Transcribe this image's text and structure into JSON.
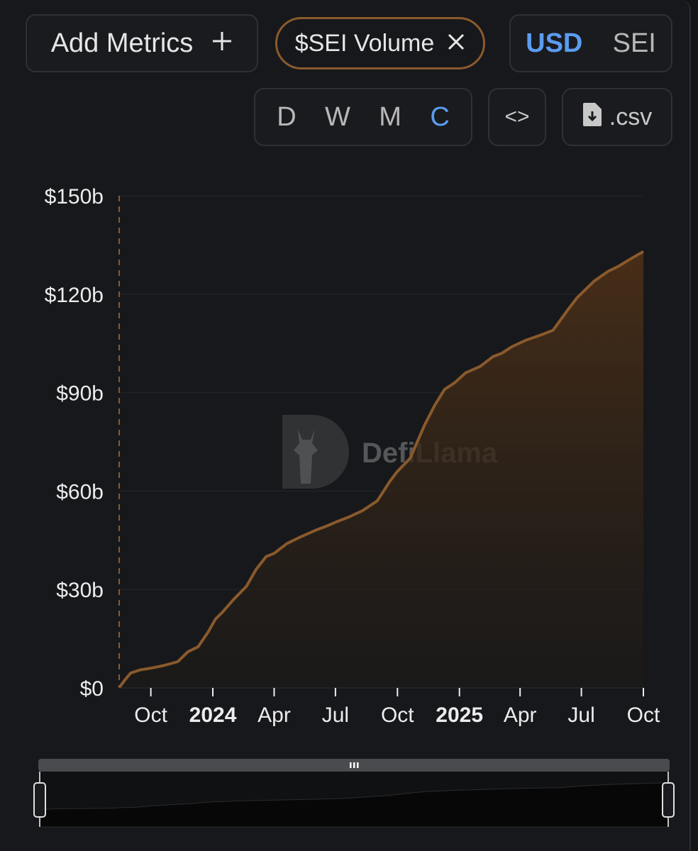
{
  "toolbar": {
    "add_metrics_label": "Add Metrics",
    "add_icon": "plus-icon",
    "metric_chip_label": "$SEI Volume",
    "metric_chip_close_icon": "close-icon",
    "currency_options": [
      "USD",
      "SEI"
    ],
    "currency_selected": "USD",
    "period_options": [
      "D",
      "W",
      "M",
      "C"
    ],
    "period_selected": "C",
    "embed_icon": "code-icon",
    "embed_label": "<>",
    "csv_label": ".csv",
    "csv_icon": "file-download-icon"
  },
  "watermark": {
    "text": "DefiLlama",
    "icon": "llama-logo-icon"
  },
  "colors": {
    "series": "#8a5a2c",
    "area_top": "#4a2f17",
    "accent_blue": "#5b9cf0",
    "chip_border": "#8a5a2c"
  },
  "chart_data": {
    "type": "area",
    "title": "",
    "xlabel": "",
    "ylabel": "",
    "ylim": [
      0,
      150
    ],
    "yticks": [
      0,
      30,
      60,
      90,
      120,
      150
    ],
    "ytick_labels": [
      "$0",
      "$30b",
      "$60b",
      "$90b",
      "$120b",
      "$150b"
    ],
    "xticks": [
      {
        "date": "2023-10-01",
        "label": "Oct",
        "bold": false
      },
      {
        "date": "2024-01-01",
        "label": "2024",
        "bold": true
      },
      {
        "date": "2024-04-01",
        "label": "Apr",
        "bold": false
      },
      {
        "date": "2024-07-01",
        "label": "Jul",
        "bold": false
      },
      {
        "date": "2024-10-01",
        "label": "Oct",
        "bold": false
      },
      {
        "date": "2025-01-01",
        "label": "2025",
        "bold": true
      },
      {
        "date": "2025-04-01",
        "label": "Apr",
        "bold": false
      },
      {
        "date": "2025-07-01",
        "label": "Jul",
        "bold": false
      },
      {
        "date": "2025-10-01",
        "label": "Oct",
        "bold": false
      }
    ],
    "x_range": [
      "2023-08-15",
      "2025-10-01"
    ],
    "grid": true,
    "series": [
      {
        "unit": "USD billions",
        "x": [
          "2023-08-15",
          "2023-08-22",
          "2023-09-01",
          "2023-09-15",
          "2023-10-01",
          "2023-10-20",
          "2023-11-10",
          "2023-11-25",
          "2023-12-10",
          "2023-12-25",
          "2024-01-05",
          "2024-01-15",
          "2024-02-01",
          "2024-02-20",
          "2024-03-05",
          "2024-03-20",
          "2024-04-01",
          "2024-04-20",
          "2024-05-10",
          "2024-06-01",
          "2024-06-20",
          "2024-07-01",
          "2024-07-20",
          "2024-08-10",
          "2024-09-01",
          "2024-09-20",
          "2024-10-01",
          "2024-10-20",
          "2024-11-10",
          "2024-11-25",
          "2024-12-10",
          "2024-12-25",
          "2025-01-10",
          "2025-02-01",
          "2025-02-20",
          "2025-03-05",
          "2025-03-20",
          "2025-04-10",
          "2025-05-01",
          "2025-05-20",
          "2025-06-10",
          "2025-06-25",
          "2025-07-05",
          "2025-07-20",
          "2025-08-10",
          "2025-08-25",
          "2025-09-10",
          "2025-10-01"
        ],
        "values": [
          0,
          2,
          4.5,
          5.5,
          6,
          6.8,
          8,
          11,
          12.5,
          17,
          21,
          23,
          27,
          31,
          36,
          40,
          41,
          44,
          46,
          48,
          49.5,
          50.5,
          52,
          54,
          57,
          63,
          66,
          70,
          80,
          86,
          91,
          93,
          96,
          98,
          101,
          102,
          104,
          106,
          107.5,
          109,
          115,
          119,
          121,
          124,
          127,
          128.5,
          130.5,
          133
        ]
      }
    ]
  }
}
